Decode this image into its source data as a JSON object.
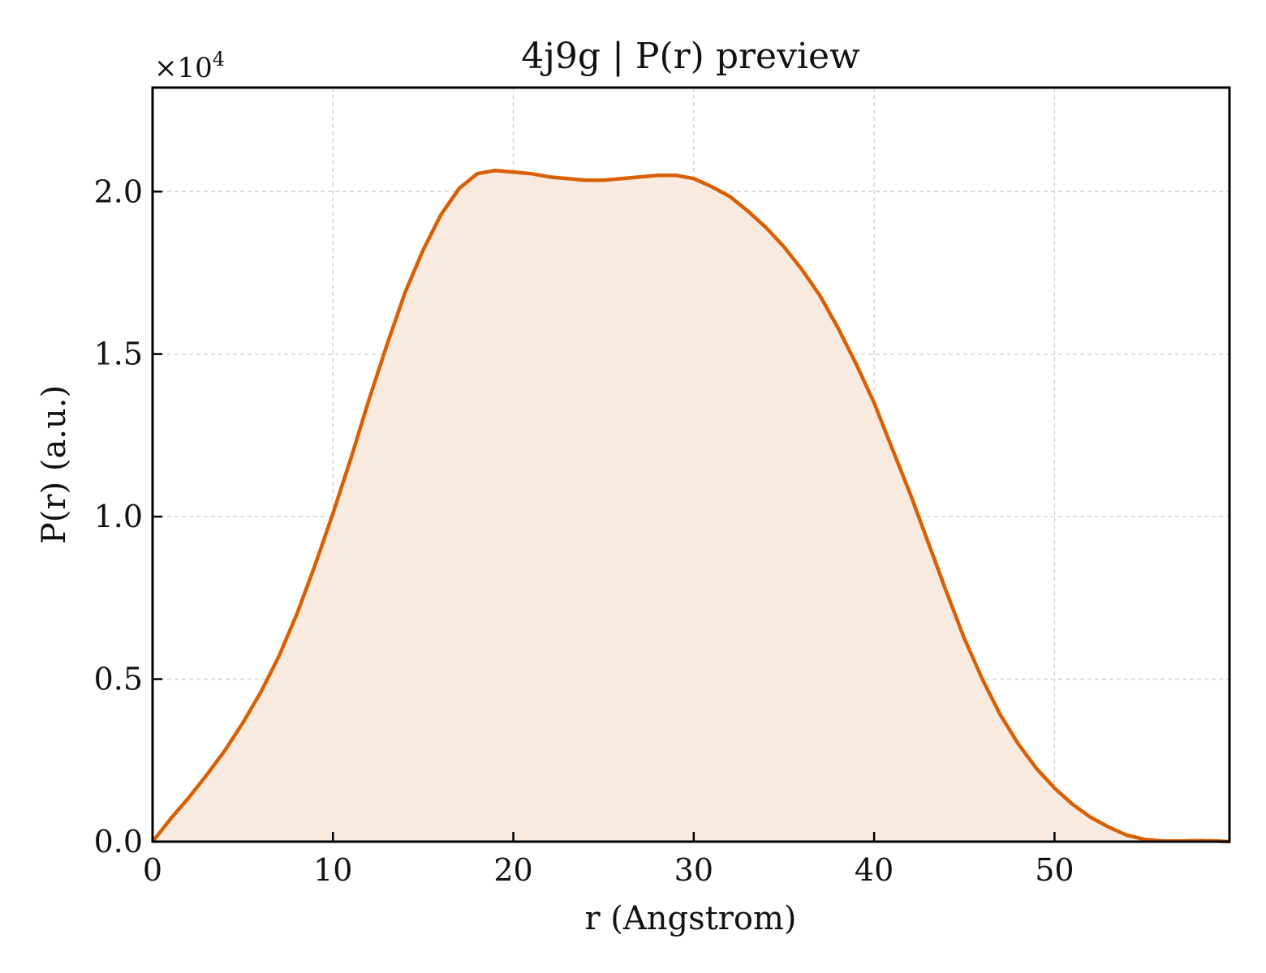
{
  "chart_data": {
    "type": "area",
    "title": "4j9g | P(r) preview",
    "xlabel": "r (Angstrom)",
    "ylabel": "P(r) (a.u.)",
    "y_multiplier_text": "×10",
    "y_multiplier_exponent": "4",
    "xlim": [
      0,
      59.7
    ],
    "ylim": [
      0,
      23200
    ],
    "xticks": [
      0,
      10,
      20,
      30,
      40,
      50
    ],
    "xtick_labels": [
      "0",
      "10",
      "20",
      "30",
      "40",
      "50"
    ],
    "yticks": [
      0,
      5000,
      10000,
      15000,
      20000
    ],
    "ytick_labels": [
      "0.0",
      "0.5",
      "1.0",
      "1.5",
      "2.0"
    ],
    "grid": true,
    "colors": {
      "line": "#d95f02",
      "fill": "#f9eadf",
      "grid": "#d3d3d3"
    },
    "series": [
      {
        "x": [
          0,
          1,
          2,
          3,
          4,
          5,
          6,
          7,
          8,
          9,
          10,
          11,
          12,
          13,
          14,
          15,
          16,
          17,
          18,
          19,
          20,
          21,
          22,
          23,
          24,
          25,
          26,
          27,
          28,
          29,
          30,
          31,
          32,
          33,
          34,
          35,
          36,
          37,
          38,
          39,
          40,
          41,
          42,
          43,
          44,
          45,
          46,
          47,
          48,
          49,
          50,
          51,
          52,
          53,
          54,
          55,
          56,
          57,
          58,
          59,
          59.7
        ],
        "y": [
          0,
          700,
          1350,
          2050,
          2800,
          3650,
          4600,
          5700,
          7000,
          8500,
          10100,
          11800,
          13600,
          15300,
          16900,
          18200,
          19300,
          20100,
          20550,
          20650,
          20600,
          20550,
          20450,
          20400,
          20350,
          20350,
          20400,
          20450,
          20500,
          20500,
          20400,
          20150,
          19850,
          19400,
          18900,
          18300,
          17600,
          16800,
          15800,
          14700,
          13500,
          12100,
          10700,
          9200,
          7700,
          6250,
          5000,
          3900,
          3000,
          2250,
          1650,
          1150,
          750,
          450,
          200,
          70,
          20,
          20,
          30,
          20,
          0
        ]
      }
    ]
  }
}
